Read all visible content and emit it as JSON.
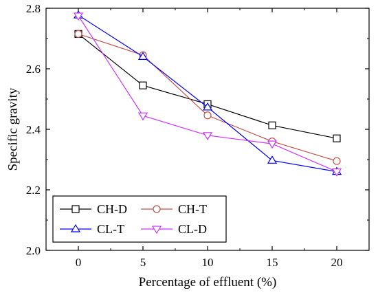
{
  "chart_data": {
    "type": "line",
    "title": "",
    "xlabel": "Percentage of effluent (%)",
    "ylabel": "Specific gravity",
    "x": [
      0,
      5,
      10,
      15,
      20
    ],
    "xticks": [
      0,
      5,
      10,
      15,
      20
    ],
    "xtick_labels": [
      "0",
      "5",
      "10",
      "15",
      "20"
    ],
    "yticks": [
      2.0,
      2.2,
      2.4,
      2.6,
      2.8
    ],
    "ytick_labels": [
      "2.0",
      "2.2",
      "2.4",
      "2.6",
      "2.8"
    ],
    "xlim": [
      -2.5,
      22.5
    ],
    "ylim": [
      2.0,
      2.8
    ],
    "grid": false,
    "legend_position": "bottom-left",
    "series": [
      {
        "name": "CH-D",
        "values": [
          2.715,
          2.545,
          2.483,
          2.413,
          2.37
        ],
        "color": "#000000",
        "marker": "square"
      },
      {
        "name": "CH-T",
        "values": [
          2.715,
          2.645,
          2.446,
          2.36,
          2.295
        ],
        "color": "#c0504d",
        "marker": "circle"
      },
      {
        "name": "CL-T",
        "values": [
          2.777,
          2.64,
          2.473,
          2.297,
          2.26
        ],
        "color": "#0000ff",
        "marker": "triangle-up"
      },
      {
        "name": "CL-D",
        "values": [
          2.775,
          2.445,
          2.38,
          2.352,
          2.26
        ],
        "color": "#cc33ff",
        "marker": "triangle-down"
      }
    ]
  }
}
